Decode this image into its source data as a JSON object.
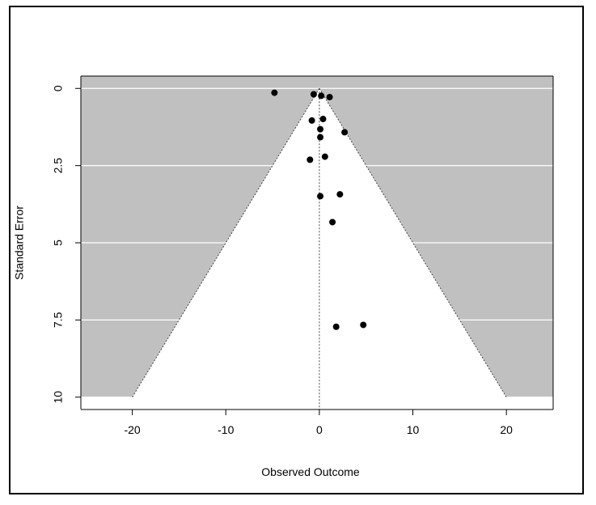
{
  "chart_data": {
    "type": "scatter",
    "subtype": "funnel-plot",
    "xlabel": "Observed Outcome",
    "ylabel": "Standard Error",
    "xlim": [
      -25.5,
      25
    ],
    "ylim_reversed": [
      0,
      10.4
    ],
    "y_reversed": true,
    "grid": true,
    "x_ticks": [
      -20,
      -10,
      0,
      10,
      20
    ],
    "x_tick_labels": [
      "-20",
      "-10",
      "0",
      "10",
      "20"
    ],
    "y_ticks": [
      0,
      2.5,
      5,
      7.5,
      10
    ],
    "y_tick_labels": [
      "0",
      "2.5",
      "5",
      "7.5",
      "10"
    ],
    "funnel": {
      "center": 0,
      "apex_se": 0,
      "bottom_se": 10,
      "half_width_at_bottom": 20
    },
    "colors": {
      "background": "#c0c0c0",
      "funnel_fill": "#ffffff",
      "gridline": "#ffffff",
      "points": "#000000"
    },
    "points": [
      {
        "x": -4.8,
        "y": 0.14
      },
      {
        "x": -0.6,
        "y": 0.19
      },
      {
        "x": 0.2,
        "y": 0.24
      },
      {
        "x": 1.1,
        "y": 0.28
      },
      {
        "x": -0.8,
        "y": 1.04
      },
      {
        "x": 0.4,
        "y": 0.99
      },
      {
        "x": 0.1,
        "y": 1.32
      },
      {
        "x": 2.7,
        "y": 1.42
      },
      {
        "x": 0.1,
        "y": 1.58
      },
      {
        "x": 0.6,
        "y": 2.21
      },
      {
        "x": -1.0,
        "y": 2.31
      },
      {
        "x": 2.2,
        "y": 3.43
      },
      {
        "x": 0.1,
        "y": 3.49
      },
      {
        "x": 1.4,
        "y": 4.33
      },
      {
        "x": 4.7,
        "y": 7.66
      },
      {
        "x": 1.8,
        "y": 7.72
      }
    ]
  }
}
